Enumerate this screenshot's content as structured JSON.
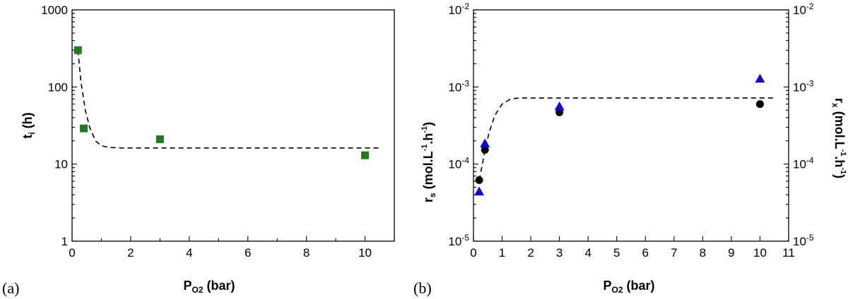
{
  "chart_data": [
    {
      "panel_label": "(a)",
      "type": "scatter",
      "xlabel": {
        "main": "P",
        "sub": "O2",
        "unit": " (bar)"
      },
      "ylabel": {
        "main": "t",
        "sub": "i",
        "unit": " (h)"
      },
      "xlim": [
        0,
        11
      ],
      "ylim": [
        1,
        1000
      ],
      "yscale": "log",
      "x_ticks": [
        "0",
        "2",
        "4",
        "6",
        "8",
        "10"
      ],
      "y_ticks": [
        "1",
        "10",
        "100",
        "1000"
      ],
      "series": [
        {
          "marker": "square",
          "color": "#1e7d1e",
          "x": [
            0.2,
            0.4,
            3,
            10
          ],
          "y": [
            300,
            29,
            21,
            13
          ]
        }
      ],
      "fit": {
        "style": "dashed",
        "x": [
          0.2,
          0.3,
          0.45,
          0.6,
          0.8,
          1.0,
          1.3,
          1.7,
          3,
          6,
          10.5
        ],
        "y": [
          300,
          120,
          50,
          30,
          20,
          17.2,
          16.4,
          16.2,
          16.2,
          16.2,
          16.2
        ]
      }
    },
    {
      "panel_label": "(b)",
      "type": "scatter",
      "xlabel": {
        "main": "P",
        "sub": "O2",
        "unit": " (bar)"
      },
      "ylabel_left": {
        "main": "r",
        "sub": "s",
        "unit": " (mol.L",
        "sup1": "-1",
        "mid": ".h",
        "sup2": "-1",
        "end": ")"
      },
      "ylabel_right": {
        "main": "r",
        "sub": "x",
        "unit": " (mol.L",
        "sup1": "-1",
        "mid": ".h",
        "sup2": "-1",
        "end": ")"
      },
      "xlim": [
        0,
        11
      ],
      "ylim": [
        1e-05,
        0.01
      ],
      "yscale": "log",
      "x_ticks": [
        "0",
        "1",
        "2",
        "3",
        "4",
        "5",
        "6",
        "7",
        "8",
        "9",
        "10",
        "11"
      ],
      "y_ticks": [
        {
          "base": "10",
          "exp": "-5"
        },
        {
          "base": "10",
          "exp": "-4"
        },
        {
          "base": "10",
          "exp": "-3"
        },
        {
          "base": "10",
          "exp": "-2"
        }
      ],
      "series": [
        {
          "marker": "circle",
          "color": "#000000",
          "axis": "left",
          "x": [
            0.2,
            0.4,
            3,
            10
          ],
          "y": [
            6.2e-05,
            0.000153,
            0.00047,
            0.0006
          ]
        },
        {
          "marker": "triangle",
          "color": "#0a0ae0",
          "axis": "right",
          "x": [
            0.2,
            0.4,
            3,
            10
          ],
          "y": [
            4.4e-05,
            0.000185,
            0.00056,
            0.00128
          ]
        }
      ],
      "fit": {
        "style": "dashed",
        "x": [
          0.2,
          0.3,
          0.4,
          0.55,
          0.75,
          1.0,
          1.3,
          1.6,
          2,
          4,
          7,
          10.5
        ],
        "y": [
          6.2e-05,
          9.5e-05,
          0.00015,
          0.00026,
          0.00043,
          0.0006,
          0.0007,
          0.00072,
          0.00072,
          0.00072,
          0.00072,
          0.00072
        ]
      }
    }
  ]
}
